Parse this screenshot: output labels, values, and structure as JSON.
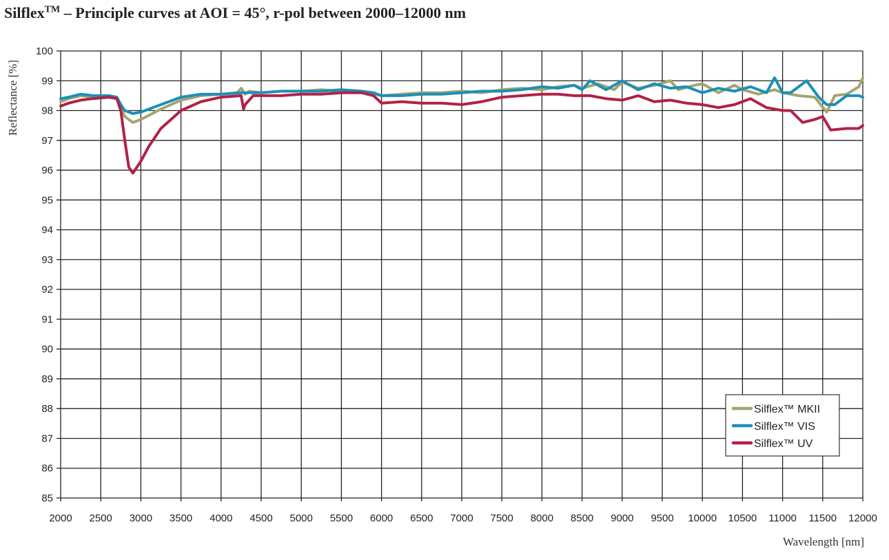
{
  "title": {
    "main": "Silflex",
    "sup": "TM",
    "rest": " – Principle curves at AOI = 45°, r-pol between 2000–12000 nm"
  },
  "chart_data": {
    "type": "line",
    "title": "Silflex™ – Principle curves at AOI = 45°, r-pol between 2000–12000 nm",
    "xlabel": "Wavelength [nm]",
    "ylabel": "Reflectance [%]",
    "xlim": [
      2000,
      12000
    ],
    "ylim": [
      85,
      100
    ],
    "xticks": [
      2000,
      2500,
      3000,
      3500,
      4000,
      4500,
      5000,
      5500,
      6000,
      6500,
      7000,
      7500,
      8000,
      8500,
      9000,
      9500,
      10000,
      10500,
      11000,
      11500,
      12000
    ],
    "yticks": [
      85,
      86,
      87,
      88,
      89,
      90,
      91,
      92,
      93,
      94,
      95,
      96,
      97,
      98,
      99,
      100
    ],
    "grid": true,
    "legend": "bottom-right",
    "series": [
      {
        "name": "Silflex™ MKII",
        "color": "#a3a56e",
        "x": [
          2000,
          2100,
          2250,
          2400,
          2600,
          2700,
          2750,
          2800,
          2900,
          3000,
          3250,
          3500,
          3750,
          4000,
          4200,
          4250,
          4300,
          4350,
          4500,
          4750,
          5000,
          5250,
          5500,
          5750,
          6000,
          6250,
          6500,
          6750,
          7000,
          7250,
          7500,
          7750,
          8000,
          8200,
          8400,
          8500,
          8700,
          8900,
          9000,
          9200,
          9400,
          9600,
          9700,
          9900,
          10000,
          10200,
          10400,
          10500,
          10700,
          10900,
          11000,
          11200,
          11400,
          11550,
          11650,
          11800,
          11950,
          12000
        ],
        "y": [
          98.3,
          98.4,
          98.5,
          98.45,
          98.5,
          98.45,
          98.1,
          97.8,
          97.6,
          97.7,
          98.05,
          98.35,
          98.5,
          98.55,
          98.6,
          98.75,
          98.55,
          98.65,
          98.6,
          98.65,
          98.65,
          98.7,
          98.65,
          98.65,
          98.5,
          98.55,
          98.6,
          98.6,
          98.65,
          98.6,
          98.7,
          98.75,
          98.7,
          98.8,
          98.85,
          98.75,
          98.9,
          98.7,
          98.95,
          98.75,
          98.85,
          99.0,
          98.7,
          98.85,
          98.9,
          98.6,
          98.85,
          98.7,
          98.55,
          98.7,
          98.6,
          98.5,
          98.45,
          97.95,
          98.5,
          98.55,
          98.8,
          99.1
        ]
      },
      {
        "name": "Silflex™ VIS",
        "color": "#1c8fb8",
        "x": [
          2000,
          2100,
          2250,
          2400,
          2600,
          2700,
          2750,
          2800,
          2900,
          3000,
          3250,
          3500,
          3750,
          4000,
          4250,
          4500,
          4750,
          5000,
          5250,
          5500,
          5750,
          5900,
          6000,
          6250,
          6500,
          6750,
          7000,
          7250,
          7500,
          7750,
          8000,
          8200,
          8400,
          8500,
          8600,
          8800,
          9000,
          9200,
          9400,
          9600,
          9800,
          10000,
          10200,
          10400,
          10600,
          10800,
          10900,
          11000,
          11100,
          11300,
          11450,
          11550,
          11650,
          11800,
          11950,
          12000
        ],
        "y": [
          98.4,
          98.45,
          98.55,
          98.5,
          98.5,
          98.45,
          98.2,
          98.0,
          97.9,
          97.95,
          98.2,
          98.45,
          98.55,
          98.55,
          98.6,
          98.6,
          98.65,
          98.65,
          98.65,
          98.7,
          98.65,
          98.6,
          98.5,
          98.5,
          98.55,
          98.55,
          98.6,
          98.65,
          98.65,
          98.7,
          98.8,
          98.75,
          98.85,
          98.7,
          99.0,
          98.7,
          99.0,
          98.7,
          98.9,
          98.75,
          98.8,
          98.6,
          98.75,
          98.65,
          98.8,
          98.6,
          99.1,
          98.6,
          98.6,
          99.0,
          98.45,
          98.2,
          98.2,
          98.5,
          98.5,
          98.45
        ]
      },
      {
        "name": "Silflex™ UV",
        "color": "#b22146",
        "x": [
          2000,
          2100,
          2250,
          2400,
          2600,
          2700,
          2750,
          2800,
          2850,
          2900,
          3000,
          3100,
          3250,
          3500,
          3750,
          4000,
          4250,
          4280,
          4300,
          4400,
          4750,
          5000,
          5250,
          5500,
          5750,
          5900,
          6000,
          6250,
          6500,
          6750,
          7000,
          7250,
          7500,
          7750,
          8000,
          8200,
          8400,
          8600,
          8800,
          9000,
          9200,
          9400,
          9600,
          9800,
          10000,
          10200,
          10400,
          10600,
          10800,
          11000,
          11100,
          11250,
          11400,
          11500,
          11600,
          11800,
          11950,
          12000
        ],
        "y": [
          98.15,
          98.25,
          98.35,
          98.4,
          98.45,
          98.4,
          98.0,
          97.0,
          96.1,
          95.9,
          96.3,
          96.8,
          97.4,
          98.0,
          98.3,
          98.45,
          98.5,
          98.05,
          98.2,
          98.5,
          98.5,
          98.55,
          98.55,
          98.6,
          98.6,
          98.5,
          98.25,
          98.3,
          98.25,
          98.25,
          98.2,
          98.3,
          98.45,
          98.5,
          98.55,
          98.55,
          98.5,
          98.5,
          98.4,
          98.35,
          98.5,
          98.3,
          98.35,
          98.25,
          98.2,
          98.1,
          98.2,
          98.4,
          98.1,
          98.0,
          98.0,
          97.6,
          97.7,
          97.8,
          97.35,
          97.4,
          97.4,
          97.5
        ]
      }
    ]
  }
}
